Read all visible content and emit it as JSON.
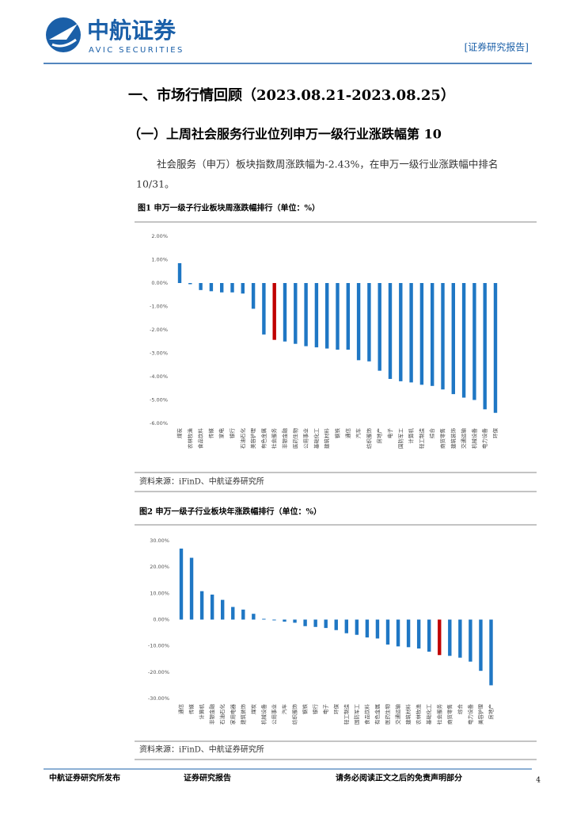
{
  "header": {
    "brand": "中航证券",
    "brand_en": "AVIC SECURITIES",
    "tag": "[证券研究报告]"
  },
  "section_title": "一、市场行情回顾（2023.08.21-2023.08.25）",
  "subsection_title": "（一）上周社会服务行业位列申万一级行业涨跌幅第 10",
  "paragraph": [
    "社会服务（申万）板块指数周涨跌幅为-2.43%，在申万一级行业涨跌幅中排名",
    "10/31。"
  ],
  "chart_data": [
    {
      "type": "bar",
      "title": "图1  申万一级子行业板块周涨跌幅排行（单位：%）",
      "source": "资料来源：iFinD、中航证券研究所",
      "categories": [
        "煤炭",
        "农林牧渔",
        "食品饮料",
        "传媒",
        "家电",
        "银行",
        "石油石化",
        "美容护理",
        "有色金属",
        "社会服务",
        "非银金融",
        "医药生物",
        "公用事业",
        "基础化工",
        "建筑材料",
        "钢铁",
        "通信",
        "汽车",
        "纺织服饰",
        "房地产",
        "电子",
        "国防军工",
        "计算机",
        "轻工制造",
        "综合",
        "商贸零售",
        "建筑装饰",
        "交通运输",
        "机械设备",
        "电力设备",
        "环保"
      ],
      "values": [
        0.85,
        -0.05,
        -0.3,
        -0.35,
        -0.4,
        -0.4,
        -0.45,
        -1.1,
        -2.2,
        -2.43,
        -2.5,
        -2.6,
        -2.7,
        -2.75,
        -2.8,
        -2.85,
        -2.85,
        -3.3,
        -3.35,
        -3.75,
        -4.1,
        -4.2,
        -4.25,
        -4.35,
        -4.4,
        -4.55,
        -4.75,
        -4.9,
        -5.0,
        -5.4,
        -5.55
      ],
      "colors": [
        "#1f77c4",
        "#1f77c4",
        "#1f77c4",
        "#1f77c4",
        "#1f77c4",
        "#1f77c4",
        "#1f77c4",
        "#1f77c4",
        "#1f77c4",
        "#c00000",
        "#1f77c4",
        "#1f77c4",
        "#1f77c4",
        "#1f77c4",
        "#1f77c4",
        "#1f77c4",
        "#1f77c4",
        "#1f77c4",
        "#1f77c4",
        "#1f77c4",
        "#1f77c4",
        "#1f77c4",
        "#1f77c4",
        "#1f77c4",
        "#1f77c4",
        "#1f77c4",
        "#1f77c4",
        "#1f77c4",
        "#1f77c4",
        "#1f77c4",
        "#1f77c4"
      ],
      "ylim": [
        -6,
        2
      ],
      "yticks": [
        {
          "value": 2,
          "label": "2.00%"
        },
        {
          "value": 1,
          "label": "1.00%"
        },
        {
          "value": 0,
          "label": "0.00%"
        },
        {
          "value": -1,
          "label": "-1.00%"
        },
        {
          "value": -2,
          "label": "-2.00%"
        },
        {
          "value": -3,
          "label": "-3.00%"
        },
        {
          "value": -4,
          "label": "-4.00%"
        },
        {
          "value": -5,
          "label": "-5.00%"
        },
        {
          "value": -6,
          "label": "-6.00%"
        }
      ]
    },
    {
      "type": "bar",
      "title": "图2  申万一级子行业板块年涨跌幅排行（单位：%）",
      "source": "资料来源：iFinD、中航证券研究所",
      "categories": [
        "通信",
        "传媒",
        "计算机",
        "非银金融",
        "石油石化",
        "家用电器",
        "建筑装饰",
        "煤炭",
        "机械设备",
        "公用事业",
        "汽车",
        "纺织服饰",
        "钢铁",
        "银行",
        "电子",
        "环保",
        "轻工制造",
        "国防军工",
        "食品饮料",
        "有色金属",
        "医药生物",
        "交通运输",
        "建筑材料",
        "农林牧渔",
        "基础化工",
        "社会服务",
        "商贸零售",
        "综合",
        "电力设备",
        "美容护理",
        "房地产"
      ],
      "values": [
        27,
        23.5,
        10.8,
        9.5,
        7.5,
        4.8,
        3.8,
        2.2,
        0.3,
        -0.3,
        -0.8,
        -1.2,
        -2.5,
        -2.8,
        -3.2,
        -4.0,
        -5.2,
        -5.8,
        -6.8,
        -7.2,
        -9.5,
        -10.2,
        -10.5,
        -11.0,
        -12.2,
        -13.5,
        -13.8,
        -14.5,
        -16.0,
        -19.5,
        -25.0
      ],
      "colors": [
        "#1f77c4",
        "#1f77c4",
        "#1f77c4",
        "#1f77c4",
        "#1f77c4",
        "#1f77c4",
        "#1f77c4",
        "#1f77c4",
        "#1f77c4",
        "#1f77c4",
        "#1f77c4",
        "#1f77c4",
        "#1f77c4",
        "#1f77c4",
        "#1f77c4",
        "#1f77c4",
        "#1f77c4",
        "#1f77c4",
        "#1f77c4",
        "#1f77c4",
        "#1f77c4",
        "#1f77c4",
        "#1f77c4",
        "#1f77c4",
        "#1f77c4",
        "#c00000",
        "#1f77c4",
        "#1f77c4",
        "#1f77c4",
        "#1f77c4",
        "#1f77c4"
      ],
      "ylim": [
        -30,
        30
      ],
      "yticks": [
        {
          "value": 30,
          "label": "30.00%"
        },
        {
          "value": 20,
          "label": "20.00%"
        },
        {
          "value": 10,
          "label": "10.00%"
        },
        {
          "value": 0,
          "label": "0.00%"
        },
        {
          "value": -10,
          "label": "-10.00%"
        },
        {
          "value": -20,
          "label": "-20.00%"
        },
        {
          "value": -30,
          "label": "-30.00%"
        }
      ]
    }
  ],
  "footer": {
    "left": "中航证券研究所发布",
    "middle": "证券研究报告",
    "right": "请务必阅读正文之后的免责声明部分",
    "page": "4"
  }
}
